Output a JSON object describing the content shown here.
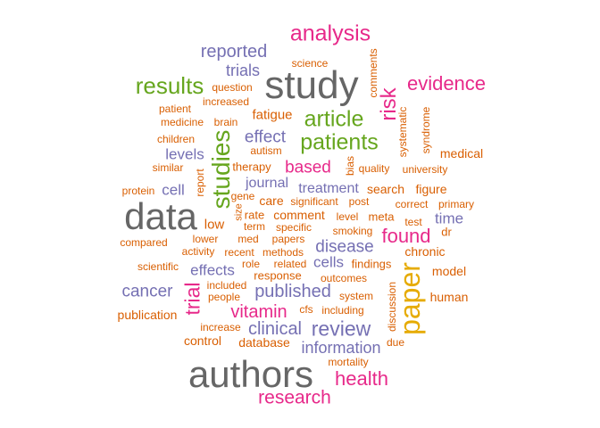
{
  "palette": {
    "gray": "#666666",
    "pink": "#e7298a",
    "green": "#66a61e",
    "purple": "#7570b3",
    "orange": "#d95f02",
    "gold": "#e6ab02",
    "brown": "#a6761d"
  },
  "words": [
    {
      "text": "study",
      "color": "gray",
      "weight": 10
    },
    {
      "text": "data",
      "color": "gray",
      "weight": 10
    },
    {
      "text": "authors",
      "color": "gray",
      "weight": 10
    },
    {
      "text": "analysis",
      "color": "pink",
      "weight": 6
    },
    {
      "text": "evidence",
      "color": "pink",
      "weight": 5
    },
    {
      "text": "found",
      "color": "pink",
      "weight": 5
    },
    {
      "text": "vitamin",
      "color": "pink",
      "weight": 5
    },
    {
      "text": "health",
      "color": "pink",
      "weight": 5
    },
    {
      "text": "research",
      "color": "pink",
      "weight": 5
    },
    {
      "text": "risk",
      "color": "pink",
      "weight": 5
    },
    {
      "text": "trial",
      "color": "pink",
      "weight": 5
    },
    {
      "text": "based",
      "color": "pink",
      "weight": 4
    },
    {
      "text": "results",
      "color": "green",
      "weight": 6
    },
    {
      "text": "article",
      "color": "green",
      "weight": 6
    },
    {
      "text": "patients",
      "color": "green",
      "weight": 6
    },
    {
      "text": "studies",
      "color": "green",
      "weight": 7
    },
    {
      "text": "paper",
      "color": "gold",
      "weight": 8
    },
    {
      "text": "review",
      "color": "purple",
      "weight": 6
    },
    {
      "text": "reported",
      "color": "purple",
      "weight": 5
    },
    {
      "text": "trials",
      "color": "purple",
      "weight": 4
    },
    {
      "text": "effect",
      "color": "purple",
      "weight": 4
    },
    {
      "text": "levels",
      "color": "purple",
      "weight": 4
    },
    {
      "text": "cell",
      "color": "purple",
      "weight": 4
    },
    {
      "text": "journal",
      "color": "purple",
      "weight": 3
    },
    {
      "text": "treatment",
      "color": "purple",
      "weight": 4
    },
    {
      "text": "time",
      "color": "purple",
      "weight": 4
    },
    {
      "text": "disease",
      "color": "purple",
      "weight": 4
    },
    {
      "text": "cells",
      "color": "purple",
      "weight": 4
    },
    {
      "text": "effects",
      "color": "purple",
      "weight": 4
    },
    {
      "text": "cancer",
      "color": "purple",
      "weight": 4
    },
    {
      "text": "published",
      "color": "purple",
      "weight": 5
    },
    {
      "text": "clinical",
      "color": "purple",
      "weight": 5
    },
    {
      "text": "information",
      "color": "purple",
      "weight": 4
    },
    {
      "text": "fatigue",
      "color": "orange",
      "weight": 3
    },
    {
      "text": "medical",
      "color": "orange",
      "weight": 3
    },
    {
      "text": "low",
      "color": "orange",
      "weight": 3
    },
    {
      "text": "chronic",
      "color": "orange",
      "weight": 3
    },
    {
      "text": "figure",
      "color": "orange",
      "weight": 3
    },
    {
      "text": "search",
      "color": "orange",
      "weight": 3
    },
    {
      "text": "dr",
      "color": "orange",
      "weight": 3
    },
    {
      "text": "model",
      "color": "orange",
      "weight": 3
    },
    {
      "text": "human",
      "color": "orange",
      "weight": 3
    },
    {
      "text": "control",
      "color": "orange",
      "weight": 3
    },
    {
      "text": "database",
      "color": "orange",
      "weight": 3
    },
    {
      "text": "publication",
      "color": "orange",
      "weight": 3
    },
    {
      "text": "comment",
      "color": "orange",
      "weight": 3
    },
    {
      "text": "care",
      "color": "orange",
      "weight": 3
    },
    {
      "text": "rate",
      "color": "orange",
      "weight": 3
    },
    {
      "text": "therapy",
      "color": "orange",
      "weight": 3
    },
    {
      "text": "question",
      "color": "orange",
      "weight": 2
    },
    {
      "text": "increased",
      "color": "orange",
      "weight": 2
    },
    {
      "text": "science",
      "color": "orange",
      "weight": 2
    },
    {
      "text": "comments",
      "color": "orange",
      "weight": 2
    },
    {
      "text": "systematic",
      "color": "orange",
      "weight": 2
    },
    {
      "text": "syndrome",
      "color": "orange",
      "weight": 2
    },
    {
      "text": "patient",
      "color": "orange",
      "weight": 2
    },
    {
      "text": "medicine",
      "color": "orange",
      "weight": 2
    },
    {
      "text": "brain",
      "color": "orange",
      "weight": 2
    },
    {
      "text": "children",
      "color": "orange",
      "weight": 2
    },
    {
      "text": "autism",
      "color": "orange",
      "weight": 2
    },
    {
      "text": "similar",
      "color": "orange",
      "weight": 2
    },
    {
      "text": "quality",
      "color": "orange",
      "weight": 2
    },
    {
      "text": "university",
      "color": "orange",
      "weight": 2
    },
    {
      "text": "bias",
      "color": "orange",
      "weight": 2
    },
    {
      "text": "protein",
      "color": "orange",
      "weight": 2
    },
    {
      "text": "report",
      "color": "orange",
      "weight": 2
    },
    {
      "text": "gene",
      "color": "orange",
      "weight": 2
    },
    {
      "text": "size",
      "color": "orange",
      "weight": 2
    },
    {
      "text": "significant",
      "color": "orange",
      "weight": 2
    },
    {
      "text": "post",
      "color": "orange",
      "weight": 2
    },
    {
      "text": "correct",
      "color": "orange",
      "weight": 2
    },
    {
      "text": "primary",
      "color": "orange",
      "weight": 2
    },
    {
      "text": "term",
      "color": "orange",
      "weight": 2
    },
    {
      "text": "specific",
      "color": "orange",
      "weight": 2
    },
    {
      "text": "level",
      "color": "orange",
      "weight": 2
    },
    {
      "text": "meta",
      "color": "orange",
      "weight": 2
    },
    {
      "text": "test",
      "color": "orange",
      "weight": 2
    },
    {
      "text": "med",
      "color": "orange",
      "weight": 2
    },
    {
      "text": "papers",
      "color": "orange",
      "weight": 2
    },
    {
      "text": "smoking",
      "color": "orange",
      "weight": 2
    },
    {
      "text": "compared",
      "color": "orange",
      "weight": 2
    },
    {
      "text": "lower",
      "color": "orange",
      "weight": 2
    },
    {
      "text": "activity",
      "color": "orange",
      "weight": 2
    },
    {
      "text": "recent",
      "color": "orange",
      "weight": 2
    },
    {
      "text": "methods",
      "color": "orange",
      "weight": 2
    },
    {
      "text": "role",
      "color": "orange",
      "weight": 2
    },
    {
      "text": "related",
      "color": "orange",
      "weight": 2
    },
    {
      "text": "findings",
      "color": "orange",
      "weight": 2
    },
    {
      "text": "scientific",
      "color": "orange",
      "weight": 2
    },
    {
      "text": "response",
      "color": "orange",
      "weight": 2
    },
    {
      "text": "outcomes",
      "color": "orange",
      "weight": 2
    },
    {
      "text": "included",
      "color": "orange",
      "weight": 2
    },
    {
      "text": "people",
      "color": "orange",
      "weight": 2
    },
    {
      "text": "system",
      "color": "orange",
      "weight": 2
    },
    {
      "text": "discussion",
      "color": "orange",
      "weight": 2
    },
    {
      "text": "cfs",
      "color": "orange",
      "weight": 2
    },
    {
      "text": "including",
      "color": "orange",
      "weight": 2
    },
    {
      "text": "increase",
      "color": "orange",
      "weight": 2
    },
    {
      "text": "due",
      "color": "orange",
      "weight": 2
    },
    {
      "text": "mortality",
      "color": "orange",
      "weight": 2
    }
  ]
}
